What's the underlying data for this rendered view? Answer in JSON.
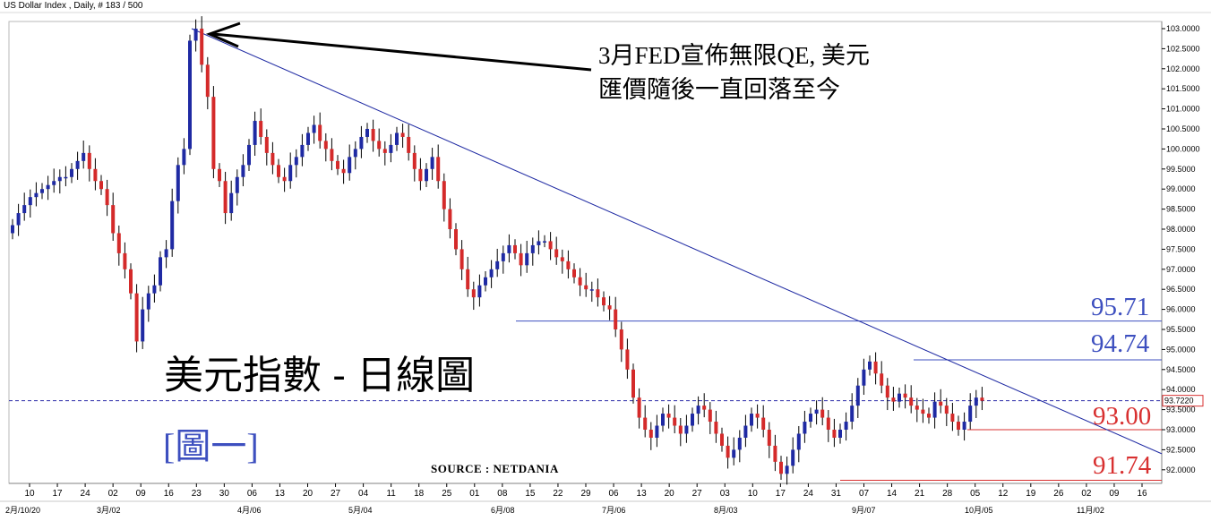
{
  "header": {
    "title": "US Dollar Index , Daily, # 183 / 500"
  },
  "annotation": {
    "line1": "3月FED宣佈無限QE, 美元",
    "line2": "匯價隨後一直回落至今"
  },
  "chart_title": "美元指數 - 日線圖",
  "figure_label": "[圖一]",
  "source": "SOURCE : NETDANIA",
  "levels": [
    {
      "label": "95.71",
      "value": 95.71,
      "color": "#3d4fbf"
    },
    {
      "label": "94.74",
      "value": 94.74,
      "color": "#3d4fbf"
    },
    {
      "label": "93.00",
      "value": 93.0,
      "color": "#d83030"
    },
    {
      "label": "91.74",
      "value": 91.74,
      "color": "#d83030"
    }
  ],
  "current_price": "93.7220",
  "chart_data": {
    "type": "candlestick",
    "title": "",
    "xlabel": "",
    "ylabel": "",
    "ylim": [
      91.7,
      103.15
    ],
    "grid": false,
    "y_ticks": [
      "103.0000",
      "102.5000",
      "102.0000",
      "101.5000",
      "101.0000",
      "100.5000",
      "100.0000",
      "99.5000",
      "99.0000",
      "98.5000",
      "98.0000",
      "97.5000",
      "97.0000",
      "96.5000",
      "96.0000",
      "95.5000",
      "95.0000",
      "94.5000",
      "94.0000",
      "93.5000",
      "93.0000",
      "92.5000",
      "92.0000"
    ],
    "x_ticks": [
      "10",
      "17",
      "24",
      "02",
      "09",
      "16",
      "23",
      "30",
      "06",
      "13",
      "20",
      "27",
      "04",
      "11",
      "18",
      "25",
      "01",
      "08",
      "15",
      "22",
      "29",
      "06",
      "13",
      "20",
      "27",
      "03",
      "10",
      "17",
      "24",
      "31",
      "07",
      "14",
      "21",
      "28",
      "05",
      "12",
      "19",
      "26",
      "02",
      "09",
      "16"
    ],
    "x_month_labels": [
      "2月/10/20",
      "3月/02",
      "4月/06",
      "5月/04",
      "6月/08",
      "7月/06",
      "8月/03",
      "9月/07",
      "10月/05",
      "11月/02"
    ],
    "trendline": {
      "from": [
        23,
        103.0
      ],
      "to": [
        178,
        92.4
      ]
    },
    "current_price_line": 93.722,
    "closes": [
      98.1,
      98.4,
      98.6,
      98.8,
      98.9,
      99.0,
      99.1,
      99.2,
      99.3,
      99.3,
      99.5,
      99.7,
      99.9,
      99.5,
      99.2,
      99.0,
      98.6,
      97.9,
      97.4,
      97.0,
      96.4,
      95.2,
      96.0,
      96.4,
      96.6,
      97.3,
      97.5,
      98.7,
      99.6,
      100.0,
      102.7,
      103.0,
      102.1,
      101.3,
      99.5,
      99.2,
      98.4,
      98.9,
      99.3,
      99.6,
      100.1,
      100.7,
      100.3,
      99.9,
      99.6,
      99.3,
      99.2,
      99.6,
      99.8,
      100.1,
      100.4,
      100.6,
      100.2,
      100.0,
      99.7,
      99.5,
      99.4,
      99.8,
      100.0,
      100.3,
      100.5,
      100.2,
      100.0,
      99.9,
      100.1,
      100.4,
      100.3,
      99.9,
      99.5,
      99.2,
      99.5,
      99.8,
      99.2,
      98.5,
      98.0,
      97.5,
      97.0,
      96.5,
      96.3,
      96.6,
      96.8,
      97.0,
      97.2,
      97.4,
      97.6,
      97.4,
      97.1,
      97.4,
      97.6,
      97.7,
      97.7,
      97.5,
      97.3,
      97.2,
      97.0,
      96.8,
      96.6,
      96.5,
      96.5,
      96.3,
      96.1,
      96.0,
      95.5,
      95.0,
      94.5,
      93.8,
      93.3,
      93.0,
      92.8,
      93.1,
      93.4,
      93.3,
      93.1,
      92.9,
      93.1,
      93.4,
      93.6,
      93.5,
      93.2,
      92.9,
      92.6,
      92.3,
      92.5,
      92.8,
      93.1,
      93.4,
      93.3,
      93.0,
      92.6,
      92.2,
      91.9,
      92.1,
      92.5,
      92.9,
      93.2,
      93.4,
      93.5,
      93.3,
      93.0,
      92.8,
      93.0,
      93.2,
      93.6,
      94.1,
      94.5,
      94.7,
      94.4,
      94.1,
      93.8,
      93.7,
      93.9,
      93.8,
      93.6,
      93.5,
      93.4,
      93.3,
      93.7,
      93.6,
      93.4,
      93.2,
      93.0,
      93.2,
      93.6,
      93.8,
      93.72
    ]
  }
}
